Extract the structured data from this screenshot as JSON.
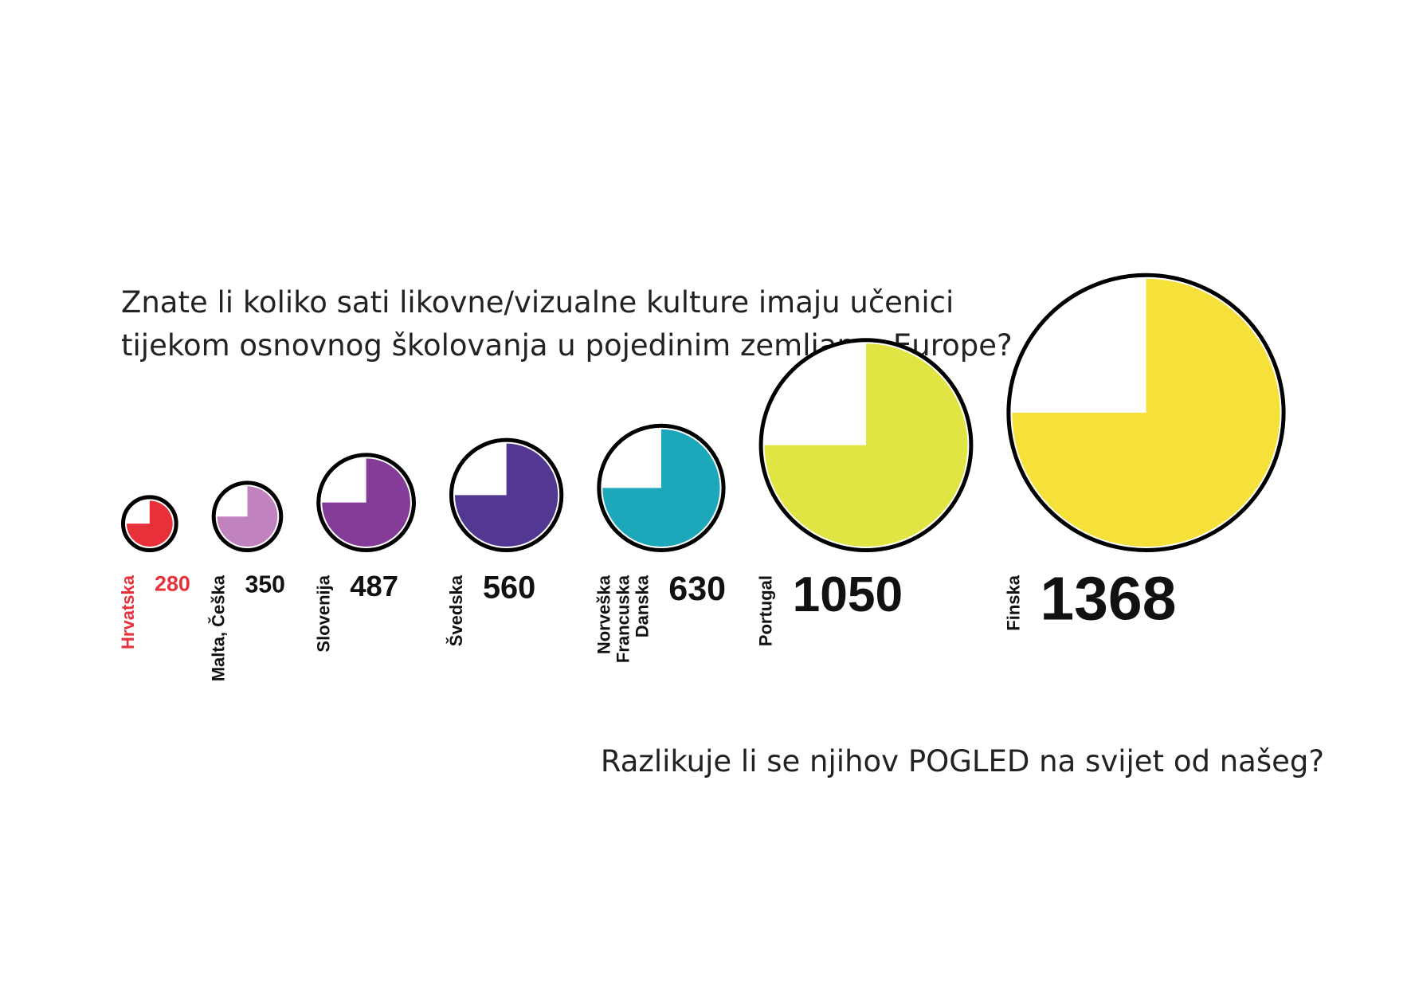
{
  "chart_data": {
    "type": "bubble",
    "title": [
      "Znate li koliko sati likovne/vizualne kulture imaju učenici",
      "tijekom osnovnog školovanja u pojedinim zemljama Europe?"
    ],
    "footer": "Razlikuje li se njihov POGLED na svijet od našeg?",
    "categories": [
      [
        "Hrvatska"
      ],
      [
        "Malta, Češka"
      ],
      [
        "Slovenija"
      ],
      [
        "Švedska"
      ],
      [
        "Norveška",
        "Francuska",
        "Danska"
      ],
      [
        "Portugal"
      ],
      [
        "Finska"
      ]
    ],
    "values": [
      280,
      350,
      487,
      560,
      630,
      1050,
      1368
    ],
    "colors": [
      "#e8303a",
      "#c182c0",
      "#843c98",
      "#533891",
      "#1ca8ba",
      "#e1e544",
      "#f6e13a"
    ],
    "highlight": [
      "Hrvatska"
    ]
  }
}
